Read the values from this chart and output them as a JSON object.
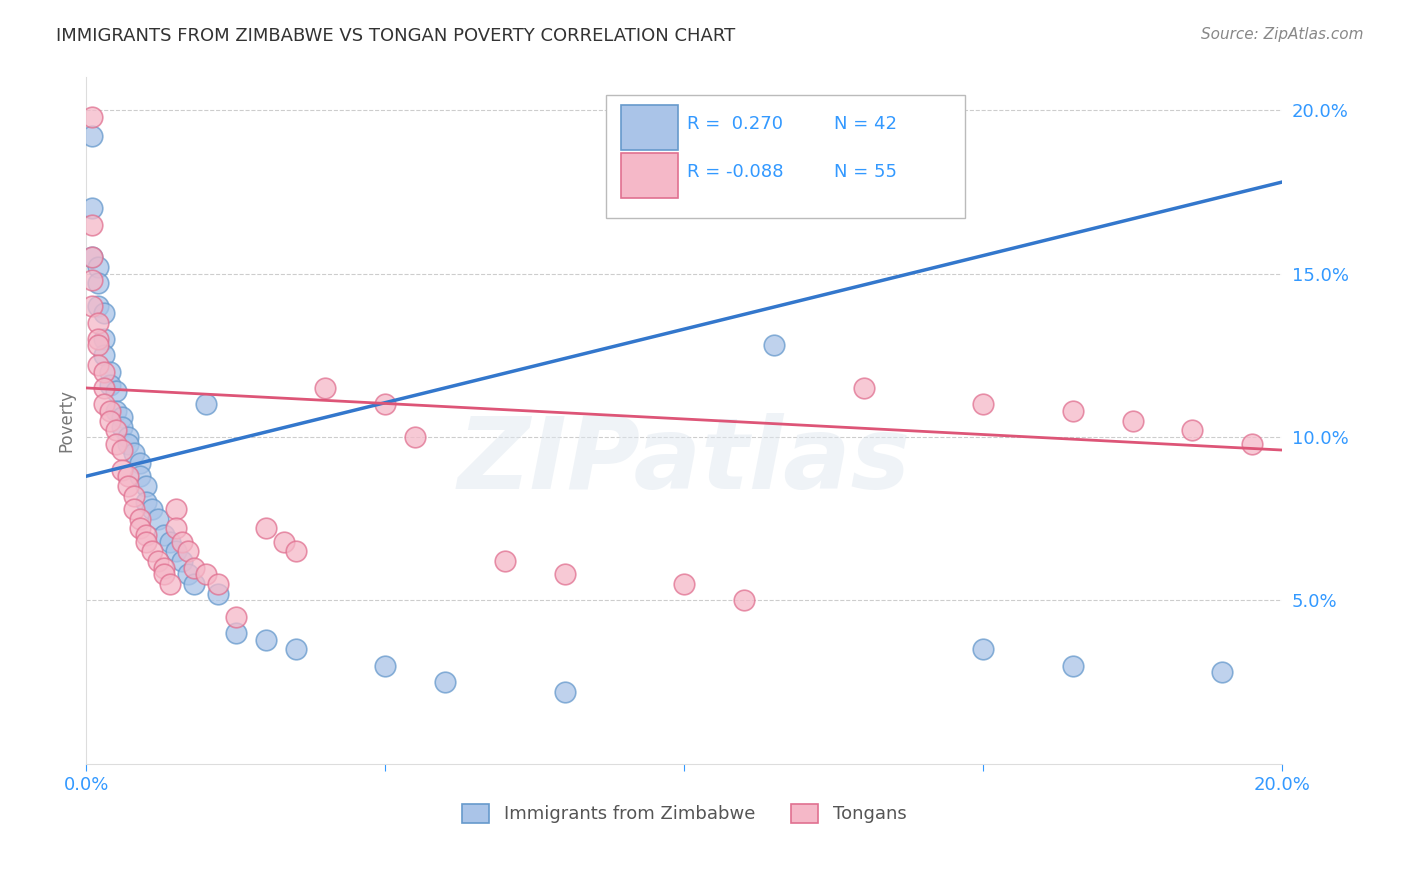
{
  "title": "IMMIGRANTS FROM ZIMBABWE VS TONGAN POVERTY CORRELATION CHART",
  "source": "Source: ZipAtlas.com",
  "ylabel": "Poverty",
  "R_blue": 0.27,
  "N_blue": 42,
  "R_pink": -0.088,
  "N_pink": 55,
  "legend_blue": "Immigrants from Zimbabwe",
  "legend_pink": "Tongans",
  "background_color": "#ffffff",
  "grid_color": "#c8c8c8",
  "blue_scatter_face": "#aac4e8",
  "blue_scatter_edge": "#6699cc",
  "pink_scatter_face": "#f5b8c8",
  "pink_scatter_edge": "#e07090",
  "blue_line_color": "#3377cc",
  "pink_line_color": "#dd5577",
  "watermark": "ZIPatlas",
  "xlim": [
    0.0,
    0.2
  ],
  "ylim": [
    0.0,
    0.21
  ],
  "yticks": [
    0.05,
    0.1,
    0.15,
    0.2
  ],
  "ytick_labels": [
    "5.0%",
    "10.0%",
    "15.0%",
    "20.0%"
  ],
  "xticks": [
    0.0,
    0.05,
    0.1,
    0.15,
    0.2
  ],
  "blue_line_x0": 0.0,
  "blue_line_y0": 0.088,
  "blue_line_x1": 0.2,
  "blue_line_y1": 0.178,
  "pink_line_x0": 0.0,
  "pink_line_y0": 0.115,
  "pink_line_x1": 0.2,
  "pink_line_y1": 0.096,
  "blue_x": [
    0.001,
    0.001,
    0.001,
    0.002,
    0.002,
    0.002,
    0.003,
    0.003,
    0.003,
    0.004,
    0.004,
    0.005,
    0.005,
    0.006,
    0.006,
    0.007,
    0.007,
    0.008,
    0.009,
    0.009,
    0.01,
    0.01,
    0.011,
    0.012,
    0.013,
    0.014,
    0.015,
    0.016,
    0.017,
    0.018,
    0.02,
    0.022,
    0.025,
    0.03,
    0.035,
    0.05,
    0.06,
    0.08,
    0.115,
    0.15,
    0.165,
    0.19
  ],
  "blue_y": [
    0.192,
    0.17,
    0.155,
    0.152,
    0.147,
    0.14,
    0.138,
    0.13,
    0.125,
    0.12,
    0.116,
    0.114,
    0.108,
    0.106,
    0.103,
    0.1,
    0.098,
    0.095,
    0.092,
    0.088,
    0.085,
    0.08,
    0.078,
    0.075,
    0.07,
    0.068,
    0.065,
    0.062,
    0.058,
    0.055,
    0.11,
    0.052,
    0.04,
    0.038,
    0.035,
    0.03,
    0.025,
    0.022,
    0.128,
    0.035,
    0.03,
    0.028
  ],
  "pink_x": [
    0.001,
    0.001,
    0.001,
    0.001,
    0.001,
    0.002,
    0.002,
    0.002,
    0.002,
    0.003,
    0.003,
    0.003,
    0.004,
    0.004,
    0.005,
    0.005,
    0.006,
    0.006,
    0.007,
    0.007,
    0.008,
    0.008,
    0.009,
    0.009,
    0.01,
    0.01,
    0.011,
    0.012,
    0.013,
    0.013,
    0.014,
    0.015,
    0.015,
    0.016,
    0.017,
    0.018,
    0.02,
    0.022,
    0.025,
    0.03,
    0.033,
    0.035,
    0.04,
    0.05,
    0.055,
    0.07,
    0.08,
    0.1,
    0.11,
    0.13,
    0.15,
    0.165,
    0.175,
    0.185,
    0.195
  ],
  "pink_y": [
    0.198,
    0.165,
    0.155,
    0.148,
    0.14,
    0.135,
    0.13,
    0.128,
    0.122,
    0.12,
    0.115,
    0.11,
    0.108,
    0.105,
    0.102,
    0.098,
    0.096,
    0.09,
    0.088,
    0.085,
    0.082,
    0.078,
    0.075,
    0.072,
    0.07,
    0.068,
    0.065,
    0.062,
    0.06,
    0.058,
    0.055,
    0.078,
    0.072,
    0.068,
    0.065,
    0.06,
    0.058,
    0.055,
    0.045,
    0.072,
    0.068,
    0.065,
    0.115,
    0.11,
    0.1,
    0.062,
    0.058,
    0.055,
    0.05,
    0.115,
    0.11,
    0.108,
    0.105,
    0.102,
    0.098
  ]
}
